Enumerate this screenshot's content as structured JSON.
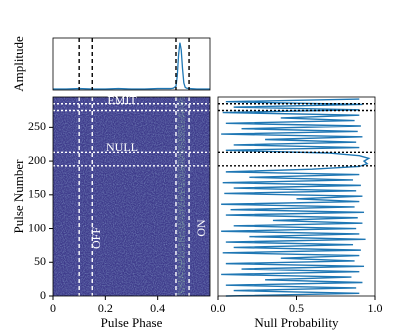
{
  "chart_data": [
    {
      "type": "line",
      "ylabel": "Amplitude",
      "color": "#1f77b4",
      "x": [
        0,
        0.05,
        0.1,
        0.15,
        0.2,
        0.25,
        0.3,
        0.35,
        0.4,
        0.45,
        0.46,
        0.47,
        0.475,
        0.48,
        0.485,
        0.49,
        0.495,
        0.5,
        0.505,
        0.51,
        0.52,
        0.55,
        0.6
      ],
      "values": [
        0.02,
        0.02,
        0.03,
        0.02,
        0.02,
        0.03,
        0.02,
        0.02,
        0.03,
        0.03,
        0.04,
        0.08,
        0.3,
        0.75,
        1.0,
        0.85,
        0.45,
        0.15,
        0.06,
        0.04,
        0.03,
        0.02,
        0.02
      ],
      "xlim": [
        0,
        0.6
      ],
      "ylim": [
        0,
        1.1
      ],
      "vlines": [
        0.1,
        0.15,
        0.47,
        0.52
      ]
    },
    {
      "type": "heatmap",
      "xlabel": "Pulse Phase",
      "ylabel": "Pulse Number",
      "xlim": [
        0,
        0.6
      ],
      "ylim": [
        0,
        295
      ],
      "xticks": [
        0,
        0.2,
        0.4
      ],
      "yticks": [
        0,
        50,
        100,
        150,
        200,
        250
      ],
      "vlines": [
        0.1,
        0.15,
        0.47,
        0.52
      ],
      "hlines": [
        193,
        213,
        275,
        285
      ],
      "annotations": [
        "EMIT",
        "NULL",
        "OFF",
        "ON"
      ]
    },
    {
      "type": "hline-profile",
      "xlabel": "Null Probability",
      "color": "#1f77b4",
      "xlim": [
        0,
        1
      ],
      "ylim": [
        0,
        295
      ],
      "xticks": [
        {
          "value": 0,
          "label": "0.0"
        },
        0.5,
        {
          "value": 1,
          "label": "1.0"
        }
      ],
      "hlines": [
        193,
        213,
        275,
        285
      ],
      "y": [
        0,
        4,
        8,
        12,
        16,
        20,
        24,
        28,
        32,
        36,
        40,
        44,
        48,
        52,
        56,
        60,
        64,
        68,
        72,
        76,
        80,
        84,
        88,
        92,
        96,
        100,
        104,
        108,
        112,
        116,
        120,
        124,
        128,
        132,
        136,
        140,
        144,
        148,
        152,
        156,
        160,
        164,
        168,
        172,
        176,
        180,
        184,
        188,
        192,
        196,
        200,
        204,
        208,
        212,
        216,
        220,
        224,
        228,
        232,
        236,
        240,
        244,
        248,
        252,
        256,
        260,
        264,
        268,
        272,
        276,
        280,
        284,
        288,
        292
      ],
      "values": [
        0.05,
        0.9,
        0.1,
        0.88,
        0.05,
        0.92,
        0.3,
        0.85,
        0.02,
        0.9,
        0.15,
        0.93,
        0.05,
        0.87,
        0.4,
        0.9,
        0.03,
        0.91,
        0.1,
        0.86,
        0.05,
        0.94,
        0.2,
        0.9,
        0.02,
        0.88,
        0.1,
        0.92,
        0.35,
        0.89,
        0.05,
        0.93,
        0.08,
        0.87,
        0.02,
        0.9,
        0.5,
        0.92,
        0.04,
        0.88,
        0.1,
        0.91,
        0.03,
        0.86,
        0.2,
        0.9,
        0.05,
        0.6,
        0.9,
        0.95,
        0.93,
        0.96,
        0.9,
        0.7,
        0.05,
        0.9,
        0.1,
        0.88,
        0.3,
        0.92,
        0.02,
        0.89,
        0.15,
        0.91,
        0.05,
        0.87,
        0.4,
        0.9,
        0.03,
        0.9,
        0.1,
        0.92,
        0.05,
        0.9
      ]
    }
  ]
}
